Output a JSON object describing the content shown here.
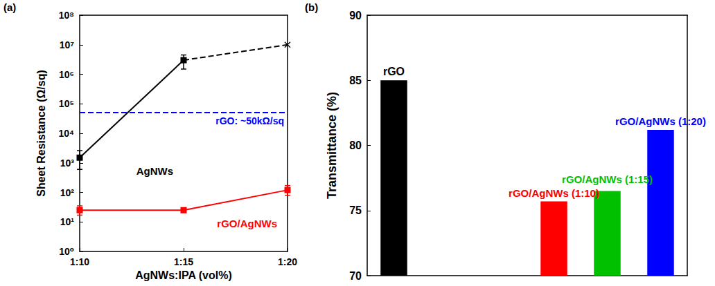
{
  "chart_data": [
    {
      "type": "line",
      "panel": "(a)",
      "x_label": "AgNWs:IPA (vol%)",
      "y_label": "Sheet Resistance (Ω/sq)",
      "categories": [
        "1:10",
        "1:15",
        "1:20"
      ],
      "log": "y",
      "ylim": [
        1,
        100000000
      ],
      "yticks": [
        {
          "value": 1,
          "label": "10⁰"
        },
        {
          "value": 10,
          "label": "10¹"
        },
        {
          "value": 100,
          "label": "10²"
        },
        {
          "value": 1000,
          "label": "10³"
        },
        {
          "value": 10000,
          "label": "10⁴"
        },
        {
          "value": 100000,
          "label": "10⁵"
        },
        {
          "value": 1000000,
          "label": "10⁶"
        },
        {
          "value": 10000000,
          "label": "10⁷"
        },
        {
          "value": 100000000,
          "label": "10⁸"
        }
      ],
      "grid": false,
      "series": [
        {
          "name": "AgNWs",
          "color": "#000000",
          "marker": "square",
          "line_style": "solid",
          "values": [
            1500,
            3000000,
            null
          ],
          "error_bars": [
            [
              600,
              2600
            ],
            [
              1500000,
              4500000
            ],
            null
          ]
        },
        {
          "color": "#000000",
          "marker": "x",
          "line_style": "dashed",
          "values": [
            null,
            3000000,
            10000000
          ]
        },
        {
          "name": "rGO/AgNWs",
          "color": "#ff0000",
          "marker": "square",
          "line_style": "solid",
          "values": [
            25,
            25,
            120
          ],
          "error_bars": [
            [
              17,
              35
            ],
            [
              22,
              30
            ],
            [
              80,
              170
            ]
          ]
        }
      ],
      "hlines": [
        {
          "value": 50000,
          "label": "rGO: ~50kΩ/sq",
          "color": "#0000ff",
          "line_style": "dashed"
        }
      ]
    },
    {
      "type": "bar",
      "panel": "(b)",
      "y_label": "Transmittance (%)",
      "categories": [
        "rGO",
        null,
        null,
        "rGO/AgNWs (1:10)",
        "rGO/AgNWs (1:15)",
        "rGO/AgNWs (1:20)"
      ],
      "values": [
        85,
        null,
        null,
        75.7,
        76.5,
        81.2
      ],
      "colors": [
        "#000000",
        null,
        null,
        "#ff0000",
        "#00c000",
        "#0000ff"
      ],
      "ylim": [
        70,
        90
      ],
      "yticks": [
        70,
        75,
        80,
        85,
        90
      ],
      "grid": false,
      "tick_labels": "y"
    }
  ]
}
